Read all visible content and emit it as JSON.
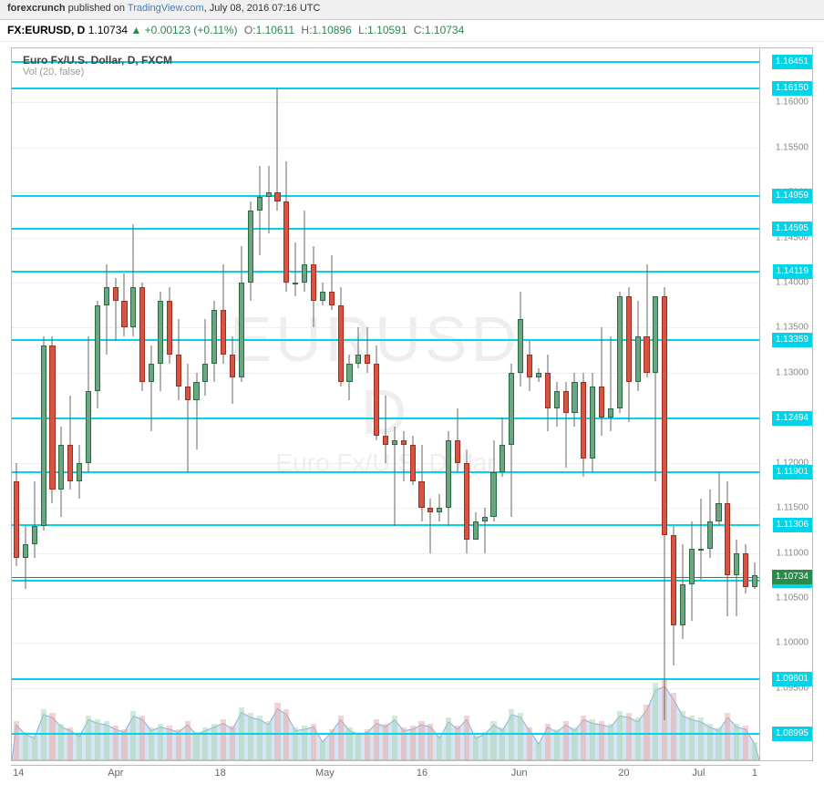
{
  "header": {
    "publisher": "forexcrunch",
    "published_prefix": " published on ",
    "site": "TradingView.com",
    "date_suffix": ", July 08, 2016 07:16 UTC"
  },
  "info": {
    "symbol_prefix": "FX:",
    "symbol": "EURUSD, D",
    "last": "1.10734",
    "change": "+0.00123",
    "change_pct": "(+0.11%)",
    "arrow": "▲",
    "open_lbl": "O:",
    "open": "1.10611",
    "high_lbl": "H:",
    "high": "1.10896",
    "low_lbl": "L:",
    "low": "1.10591",
    "close_lbl": "C:",
    "close": "1.10734"
  },
  "chart": {
    "title": "Euro Fx/U.S. Dollar, D, FXCM",
    "subtitle": "Vol (20, false)",
    "watermark1": "EURUSD, D",
    "watermark2": "Euro Fx/U.S. Dollar",
    "ymax": 1.166,
    "ymin": 1.087,
    "yticks": [
      1.16,
      1.155,
      1.15,
      1.145,
      1.14,
      1.135,
      1.13,
      1.125,
      1.12,
      1.115,
      1.11,
      1.105,
      1.1,
      1.095,
      1.09
    ],
    "hlines": [
      1.16451,
      1.1615,
      1.14959,
      1.14595,
      1.14119,
      1.13359,
      1.12494,
      1.11901,
      1.11306,
      1.10697,
      1.09601,
      1.08995
    ],
    "price_line": 1.10734,
    "colors": {
      "up_body": "#6ba583",
      "up_border": "#2a6b3f",
      "down_body": "#d75442",
      "down_border": "#a02e20",
      "wick": "#666",
      "hline": "#00d4e8",
      "price": "#2a8a4a",
      "vol_up": "#a3d4b0",
      "vol_down": "#e8a89f",
      "vol_area": "rgba(90,150,210,0.25)"
    },
    "xlabels": [
      {
        "x": 0.01,
        "t": "14"
      },
      {
        "x": 0.14,
        "t": "Apr"
      },
      {
        "x": 0.28,
        "t": "18"
      },
      {
        "x": 0.42,
        "t": "May"
      },
      {
        "x": 0.55,
        "t": "16"
      },
      {
        "x": 0.68,
        "t": "Jun"
      },
      {
        "x": 0.82,
        "t": "20"
      },
      {
        "x": 0.92,
        "t": "Jul"
      },
      {
        "x": 0.995,
        "t": "1"
      }
    ],
    "candles": [
      {
        "o": 1.118,
        "h": 1.12,
        "l": 1.1085,
        "c": 1.1095,
        "v": 48
      },
      {
        "o": 1.1095,
        "h": 1.113,
        "l": 1.106,
        "c": 1.111,
        "v": 35
      },
      {
        "o": 1.111,
        "h": 1.118,
        "l": 1.1095,
        "c": 1.113,
        "v": 30
      },
      {
        "o": 1.113,
        "h": 1.134,
        "l": 1.1125,
        "c": 1.133,
        "v": 62
      },
      {
        "o": 1.133,
        "h": 1.134,
        "l": 1.1155,
        "c": 1.117,
        "v": 58
      },
      {
        "o": 1.117,
        "h": 1.124,
        "l": 1.114,
        "c": 1.122,
        "v": 45
      },
      {
        "o": 1.122,
        "h": 1.1275,
        "l": 1.117,
        "c": 1.118,
        "v": 40
      },
      {
        "o": 1.118,
        "h": 1.122,
        "l": 1.116,
        "c": 1.12,
        "v": 32
      },
      {
        "o": 1.12,
        "h": 1.134,
        "l": 1.119,
        "c": 1.128,
        "v": 55
      },
      {
        "o": 1.128,
        "h": 1.138,
        "l": 1.126,
        "c": 1.1375,
        "v": 50
      },
      {
        "o": 1.1375,
        "h": 1.142,
        "l": 1.132,
        "c": 1.1395,
        "v": 48
      },
      {
        "o": 1.1395,
        "h": 1.1405,
        "l": 1.1335,
        "c": 1.138,
        "v": 42
      },
      {
        "o": 1.138,
        "h": 1.141,
        "l": 1.134,
        "c": 1.135,
        "v": 38
      },
      {
        "o": 1.135,
        "h": 1.1465,
        "l": 1.134,
        "c": 1.1395,
        "v": 60
      },
      {
        "o": 1.1395,
        "h": 1.14,
        "l": 1.128,
        "c": 1.129,
        "v": 55
      },
      {
        "o": 1.129,
        "h": 1.133,
        "l": 1.1235,
        "c": 1.131,
        "v": 40
      },
      {
        "o": 1.131,
        "h": 1.139,
        "l": 1.128,
        "c": 1.138,
        "v": 45
      },
      {
        "o": 1.138,
        "h": 1.1395,
        "l": 1.131,
        "c": 1.132,
        "v": 42
      },
      {
        "o": 1.132,
        "h": 1.136,
        "l": 1.127,
        "c": 1.1285,
        "v": 38
      },
      {
        "o": 1.1285,
        "h": 1.131,
        "l": 1.119,
        "c": 1.127,
        "v": 48
      },
      {
        "o": 1.127,
        "h": 1.13,
        "l": 1.1215,
        "c": 1.129,
        "v": 35
      },
      {
        "o": 1.129,
        "h": 1.136,
        "l": 1.1275,
        "c": 1.131,
        "v": 40
      },
      {
        "o": 1.131,
        "h": 1.138,
        "l": 1.129,
        "c": 1.137,
        "v": 45
      },
      {
        "o": 1.137,
        "h": 1.142,
        "l": 1.131,
        "c": 1.132,
        "v": 50
      },
      {
        "o": 1.132,
        "h": 1.134,
        "l": 1.1265,
        "c": 1.1295,
        "v": 42
      },
      {
        "o": 1.1295,
        "h": 1.144,
        "l": 1.129,
        "c": 1.14,
        "v": 65
      },
      {
        "o": 1.14,
        "h": 1.149,
        "l": 1.138,
        "c": 1.148,
        "v": 58
      },
      {
        "o": 1.148,
        "h": 1.153,
        "l": 1.143,
        "c": 1.1495,
        "v": 55
      },
      {
        "o": 1.1495,
        "h": 1.153,
        "l": 1.1455,
        "c": 1.15,
        "v": 48
      },
      {
        "o": 1.15,
        "h": 1.1615,
        "l": 1.148,
        "c": 1.149,
        "v": 70
      },
      {
        "o": 1.149,
        "h": 1.1535,
        "l": 1.139,
        "c": 1.14,
        "v": 62
      },
      {
        "o": 1.14,
        "h": 1.1445,
        "l": 1.1385,
        "c": 1.14,
        "v": 40
      },
      {
        "o": 1.14,
        "h": 1.148,
        "l": 1.139,
        "c": 1.142,
        "v": 42
      },
      {
        "o": 1.142,
        "h": 1.144,
        "l": 1.135,
        "c": 1.138,
        "v": 45
      },
      {
        "o": 1.138,
        "h": 1.14,
        "l": 1.1375,
        "c": 1.139,
        "v": 25
      },
      {
        "o": 1.139,
        "h": 1.143,
        "l": 1.137,
        "c": 1.1375,
        "v": 38
      },
      {
        "o": 1.1375,
        "h": 1.1395,
        "l": 1.1285,
        "c": 1.129,
        "v": 55
      },
      {
        "o": 1.129,
        "h": 1.132,
        "l": 1.127,
        "c": 1.131,
        "v": 40
      },
      {
        "o": 1.131,
        "h": 1.135,
        "l": 1.1305,
        "c": 1.132,
        "v": 35
      },
      {
        "o": 1.132,
        "h": 1.135,
        "l": 1.13,
        "c": 1.131,
        "v": 38
      },
      {
        "o": 1.131,
        "h": 1.133,
        "l": 1.1225,
        "c": 1.123,
        "v": 50
      },
      {
        "o": 1.123,
        "h": 1.1275,
        "l": 1.12,
        "c": 1.122,
        "v": 45
      },
      {
        "o": 1.122,
        "h": 1.124,
        "l": 1.113,
        "c": 1.1225,
        "v": 55
      },
      {
        "o": 1.1225,
        "h": 1.1235,
        "l": 1.118,
        "c": 1.122,
        "v": 40
      },
      {
        "o": 1.122,
        "h": 1.123,
        "l": 1.1175,
        "c": 1.118,
        "v": 42
      },
      {
        "o": 1.118,
        "h": 1.122,
        "l": 1.1135,
        "c": 1.115,
        "v": 48
      },
      {
        "o": 1.115,
        "h": 1.116,
        "l": 1.11,
        "c": 1.1145,
        "v": 45
      },
      {
        "o": 1.1145,
        "h": 1.1165,
        "l": 1.1135,
        "c": 1.115,
        "v": 30
      },
      {
        "o": 1.115,
        "h": 1.1235,
        "l": 1.113,
        "c": 1.1225,
        "v": 52
      },
      {
        "o": 1.1225,
        "h": 1.126,
        "l": 1.119,
        "c": 1.12,
        "v": 42
      },
      {
        "o": 1.12,
        "h": 1.1215,
        "l": 1.11,
        "c": 1.1115,
        "v": 55
      },
      {
        "o": 1.1115,
        "h": 1.1145,
        "l": 1.1115,
        "c": 1.1135,
        "v": 30
      },
      {
        "o": 1.1135,
        "h": 1.115,
        "l": 1.11,
        "c": 1.114,
        "v": 35
      },
      {
        "o": 1.114,
        "h": 1.1225,
        "l": 1.1135,
        "c": 1.119,
        "v": 48
      },
      {
        "o": 1.119,
        "h": 1.125,
        "l": 1.1185,
        "c": 1.122,
        "v": 40
      },
      {
        "o": 1.122,
        "h": 1.131,
        "l": 1.114,
        "c": 1.13,
        "v": 62
      },
      {
        "o": 1.13,
        "h": 1.139,
        "l": 1.1285,
        "c": 1.136,
        "v": 58
      },
      {
        "o": 1.132,
        "h": 1.1335,
        "l": 1.128,
        "c": 1.1295,
        "v": 40
      },
      {
        "o": 1.1295,
        "h": 1.1305,
        "l": 1.129,
        "c": 1.13,
        "v": 22
      },
      {
        "o": 1.13,
        "h": 1.132,
        "l": 1.1235,
        "c": 1.126,
        "v": 45
      },
      {
        "o": 1.126,
        "h": 1.129,
        "l": 1.124,
        "c": 1.128,
        "v": 38
      },
      {
        "o": 1.128,
        "h": 1.129,
        "l": 1.1195,
        "c": 1.1255,
        "v": 48
      },
      {
        "o": 1.1255,
        "h": 1.13,
        "l": 1.124,
        "c": 1.129,
        "v": 40
      },
      {
        "o": 1.129,
        "h": 1.13,
        "l": 1.1185,
        "c": 1.1205,
        "v": 55
      },
      {
        "o": 1.1205,
        "h": 1.13,
        "l": 1.119,
        "c": 1.1285,
        "v": 50
      },
      {
        "o": 1.1285,
        "h": 1.135,
        "l": 1.123,
        "c": 1.125,
        "v": 48
      },
      {
        "o": 1.125,
        "h": 1.134,
        "l": 1.1235,
        "c": 1.126,
        "v": 45
      },
      {
        "o": 1.126,
        "h": 1.139,
        "l": 1.1255,
        "c": 1.1385,
        "v": 60
      },
      {
        "o": 1.1385,
        "h": 1.1395,
        "l": 1.1245,
        "c": 1.129,
        "v": 58
      },
      {
        "o": 1.129,
        "h": 1.138,
        "l": 1.128,
        "c": 1.134,
        "v": 52
      },
      {
        "o": 1.134,
        "h": 1.142,
        "l": 1.1295,
        "c": 1.13,
        "v": 68
      },
      {
        "o": 1.13,
        "h": 1.1385,
        "l": 1.118,
        "c": 1.1385,
        "v": 95
      },
      {
        "o": 1.1385,
        "h": 1.1395,
        "l": 1.0915,
        "c": 1.112,
        "v": 100
      },
      {
        "o": 1.112,
        "h": 1.113,
        "l": 1.0975,
        "c": 1.102,
        "v": 82
      },
      {
        "o": 1.102,
        "h": 1.111,
        "l": 1.1005,
        "c": 1.1065,
        "v": 60
      },
      {
        "o": 1.1065,
        "h": 1.1135,
        "l": 1.1025,
        "c": 1.1105,
        "v": 55
      },
      {
        "o": 1.1105,
        "h": 1.116,
        "l": 1.107,
        "c": 1.1105,
        "v": 52
      },
      {
        "o": 1.1105,
        "h": 1.117,
        "l": 1.1095,
        "c": 1.1135,
        "v": 45
      },
      {
        "o": 1.1135,
        "h": 1.119,
        "l": 1.113,
        "c": 1.1155,
        "v": 40
      },
      {
        "o": 1.1155,
        "h": 1.118,
        "l": 1.103,
        "c": 1.1075,
        "v": 58
      },
      {
        "o": 1.1075,
        "h": 1.1115,
        "l": 1.103,
        "c": 1.11,
        "v": 45
      },
      {
        "o": 1.11,
        "h": 1.111,
        "l": 1.1055,
        "c": 1.1062,
        "v": 42
      },
      {
        "o": 1.1062,
        "h": 1.109,
        "l": 1.106,
        "c": 1.1075,
        "v": 22
      }
    ]
  }
}
